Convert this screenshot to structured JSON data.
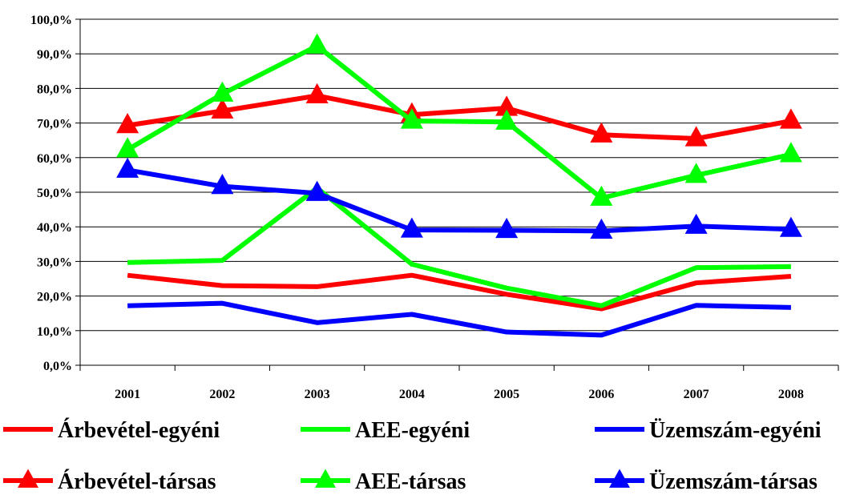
{
  "chart_data": {
    "type": "line",
    "categories": [
      "2001",
      "2002",
      "2003",
      "2004",
      "2005",
      "2006",
      "2007",
      "2008"
    ],
    "y_ticks": [
      "0,0%",
      "10,0%",
      "20,0%",
      "30,0%",
      "40,0%",
      "50,0%",
      "60,0%",
      "70,0%",
      "80,0%",
      "90,0%",
      "100,0%"
    ],
    "ylim": [
      0,
      100
    ],
    "grid": true,
    "legend_position": "bottom",
    "series": [
      {
        "name": "Árbevétel-egyéni",
        "color": "#ff0000",
        "marker": "none",
        "values": [
          26.0,
          23.0,
          22.7,
          26.0,
          20.5,
          16.3,
          23.8,
          25.7
        ]
      },
      {
        "name": "AEE-egyéni",
        "color": "#00ff00",
        "marker": "none",
        "values": [
          29.7,
          30.3,
          51.2,
          29.2,
          22.3,
          17.2,
          28.2,
          28.5
        ]
      },
      {
        "name": "Üzemszám-egyéni",
        "color": "#0000ff",
        "marker": "none",
        "values": [
          17.2,
          17.9,
          12.3,
          14.7,
          9.6,
          8.7,
          17.3,
          16.7
        ]
      },
      {
        "name": "Árbevétel-társas",
        "color": "#ff0000",
        "marker": "triangle",
        "values": [
          69.3,
          73.5,
          77.9,
          72.4,
          74.3,
          66.6,
          65.5,
          70.6
        ]
      },
      {
        "name": "AEE-társas",
        "color": "#00ff00",
        "marker": "triangle",
        "values": [
          62.3,
          78.4,
          92.3,
          70.6,
          70.3,
          48.3,
          54.9,
          60.9
        ]
      },
      {
        "name": "Üzemszám-társas",
        "color": "#0000ff",
        "marker": "triangle",
        "values": [
          56.4,
          51.7,
          49.7,
          39.1,
          39.0,
          38.8,
          40.2,
          39.3
        ]
      }
    ]
  }
}
